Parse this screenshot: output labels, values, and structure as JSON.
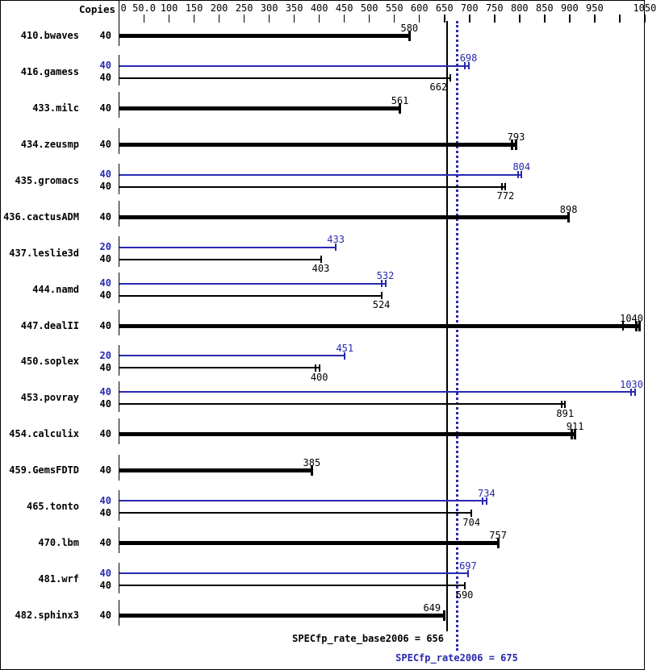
{
  "chart_data": {
    "type": "bar",
    "orientation": "horizontal",
    "copies_header": "Copies",
    "colors": {
      "base": "#000000",
      "peak": "#2828b0"
    },
    "x_axis": {
      "min": 0,
      "max": 1050,
      "ticks": [
        {
          "v": 0,
          "label": "0"
        },
        {
          "v": 50,
          "label": "50.0"
        },
        {
          "v": 100,
          "label": "100"
        },
        {
          "v": 150,
          "label": "150"
        },
        {
          "v": 200,
          "label": "200"
        },
        {
          "v": 250,
          "label": "250"
        },
        {
          "v": 300,
          "label": "300"
        },
        {
          "v": 350,
          "label": "350"
        },
        {
          "v": 400,
          "label": "400"
        },
        {
          "v": 450,
          "label": "450"
        },
        {
          "v": 500,
          "label": "500"
        },
        {
          "v": 550,
          "label": "550"
        },
        {
          "v": 600,
          "label": "600"
        },
        {
          "v": 650,
          "label": "650"
        },
        {
          "v": 700,
          "label": "700"
        },
        {
          "v": 750,
          "label": "750"
        },
        {
          "v": 800,
          "label": "800"
        },
        {
          "v": 850,
          "label": "850"
        },
        {
          "v": 900,
          "label": "900"
        },
        {
          "v": 950,
          "label": "950"
        },
        {
          "v": 1000,
          "label": ""
        },
        {
          "v": 1050,
          "label": "1050"
        }
      ]
    },
    "benchmarks": [
      {
        "name": "410.bwaves",
        "bars": [
          {
            "kind": "base",
            "copies": 40,
            "value": 580,
            "end": "single"
          }
        ]
      },
      {
        "name": "416.gamess",
        "bars": [
          {
            "kind": "peak",
            "copies": 40,
            "value": 698,
            "end": "double"
          },
          {
            "kind": "base",
            "copies": 40,
            "value": 662,
            "end": "double"
          }
        ]
      },
      {
        "name": "433.milc",
        "bars": [
          {
            "kind": "base",
            "copies": 40,
            "value": 561,
            "end": "single"
          }
        ]
      },
      {
        "name": "434.zeusmp",
        "bars": [
          {
            "kind": "base",
            "copies": 40,
            "value": 793,
            "end": "double"
          }
        ]
      },
      {
        "name": "435.gromacs",
        "bars": [
          {
            "kind": "peak",
            "copies": 40,
            "value": 804,
            "end": "double"
          },
          {
            "kind": "base",
            "copies": 40,
            "value": 772,
            "end": "double"
          }
        ]
      },
      {
        "name": "436.cactusADM",
        "bars": [
          {
            "kind": "base",
            "copies": 40,
            "value": 898,
            "end": "single"
          }
        ]
      },
      {
        "name": "437.leslie3d",
        "bars": [
          {
            "kind": "peak",
            "copies": 20,
            "value": 433,
            "end": "single"
          },
          {
            "kind": "base",
            "copies": 40,
            "value": 403,
            "end": "single"
          }
        ]
      },
      {
        "name": "444.namd",
        "bars": [
          {
            "kind": "peak",
            "copies": 40,
            "value": 532,
            "end": "double"
          },
          {
            "kind": "base",
            "copies": 40,
            "value": 524,
            "end": "single"
          }
        ]
      },
      {
        "name": "447.dealII",
        "bars": [
          {
            "kind": "base",
            "copies": 40,
            "value": 1040,
            "end": "double",
            "extra_marks": [
              1007
            ]
          }
        ]
      },
      {
        "name": "450.soplex",
        "bars": [
          {
            "kind": "peak",
            "copies": 20,
            "value": 451,
            "end": "single"
          },
          {
            "kind": "base",
            "copies": 40,
            "value": 400,
            "end": "double"
          }
        ]
      },
      {
        "name": "453.povray",
        "bars": [
          {
            "kind": "peak",
            "copies": 40,
            "value": 1030,
            "end": "double"
          },
          {
            "kind": "base",
            "copies": 40,
            "value": 891,
            "end": "double"
          }
        ]
      },
      {
        "name": "454.calculix",
        "bars": [
          {
            "kind": "base",
            "copies": 40,
            "value": 911,
            "end": "double"
          }
        ]
      },
      {
        "name": "459.GemsFDTD",
        "bars": [
          {
            "kind": "base",
            "copies": 40,
            "value": 385,
            "end": "single"
          }
        ]
      },
      {
        "name": "465.tonto",
        "bars": [
          {
            "kind": "peak",
            "copies": 40,
            "value": 734,
            "end": "double"
          },
          {
            "kind": "base",
            "copies": 40,
            "value": 704,
            "end": "single"
          }
        ]
      },
      {
        "name": "470.lbm",
        "bars": [
          {
            "kind": "base",
            "copies": 40,
            "value": 757,
            "end": "single"
          }
        ]
      },
      {
        "name": "481.wrf",
        "bars": [
          {
            "kind": "peak",
            "copies": 40,
            "value": 697,
            "end": "single"
          },
          {
            "kind": "base",
            "copies": 40,
            "value": 690,
            "end": "single"
          }
        ]
      },
      {
        "name": "482.sphinx3",
        "bars": [
          {
            "kind": "base",
            "copies": 40,
            "value": 649,
            "end": "single"
          }
        ]
      }
    ],
    "reference_lines": [
      {
        "name": "base",
        "label": "SPECfp_rate_base2006 = 656",
        "value": 656,
        "style": "solid",
        "color": "#000000"
      },
      {
        "name": "peak",
        "label": "SPECfp_rate2006 = 675",
        "value": 675,
        "style": "dotted",
        "color": "#2828b0"
      }
    ]
  }
}
